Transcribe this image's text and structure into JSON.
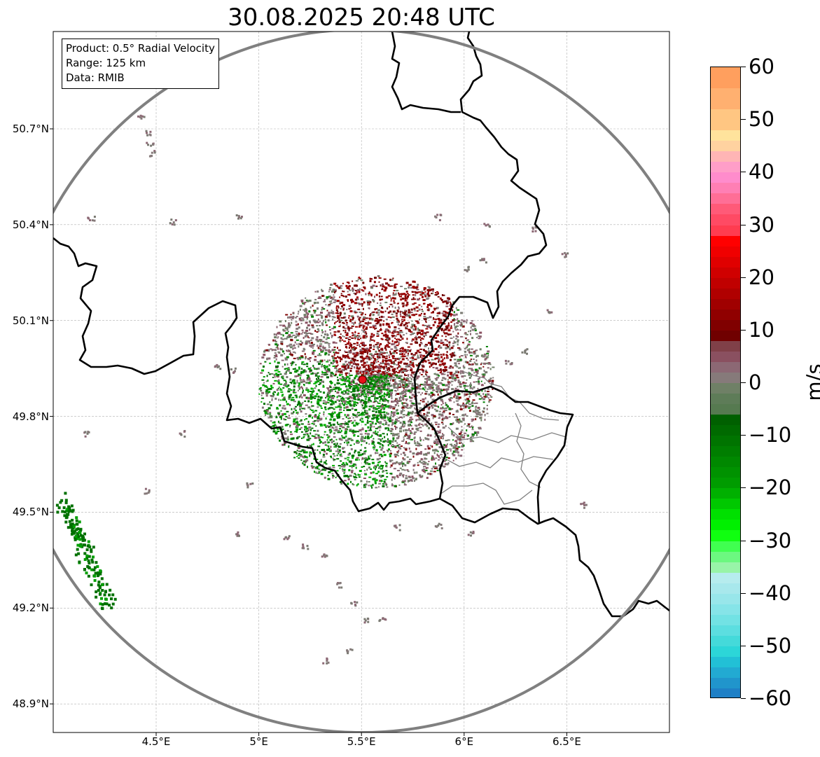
{
  "title": "30.08.2025 20:48 UTC",
  "info": {
    "product": "Product: 0.5° Radial Velocity",
    "range": "Range: 125 km",
    "source": "Data: RMIB"
  },
  "axes": {
    "lat_labels": [
      {
        "value": 50.7,
        "label": "50.7°N"
      },
      {
        "value": 50.4,
        "label": "50.4°N"
      },
      {
        "value": 50.1,
        "label": "50.1°N"
      },
      {
        "value": 49.8,
        "label": "49.8°N"
      },
      {
        "value": 49.5,
        "label": "49.5°N"
      },
      {
        "value": 49.2,
        "label": "49.2°N"
      },
      {
        "value": 48.9,
        "label": "48.9°N"
      }
    ],
    "lon_labels": [
      {
        "value": 4.5,
        "label": "4.5°E"
      },
      {
        "value": 5.0,
        "label": "5°E"
      },
      {
        "value": 5.5,
        "label": "5.5°E"
      },
      {
        "value": 6.0,
        "label": "6°E"
      },
      {
        "value": 6.5,
        "label": "6.5°E"
      }
    ],
    "lon_range": [
      4.0,
      7.0
    ],
    "lat_range": [
      48.8,
      51.0
    ]
  },
  "radar_site": {
    "lon": 5.505,
    "lat": 49.915,
    "color": "#e8101a"
  },
  "colorbar": {
    "unit": "m/s",
    "min": -60,
    "max": 60,
    "ticks": [
      {
        "value": 60,
        "label": "60"
      },
      {
        "value": 50,
        "label": "50"
      },
      {
        "value": 40,
        "label": "40"
      },
      {
        "value": 30,
        "label": "30"
      },
      {
        "value": 20,
        "label": "20"
      },
      {
        "value": 10,
        "label": "10"
      },
      {
        "value": 0,
        "label": "0"
      },
      {
        "value": -10,
        "label": "−10"
      },
      {
        "value": -20,
        "label": "−20"
      },
      {
        "value": -30,
        "label": "−30"
      },
      {
        "value": -40,
        "label": "−40"
      },
      {
        "value": -50,
        "label": "−50"
      },
      {
        "value": -60,
        "label": "−60"
      }
    ],
    "segments": [
      {
        "from": 56,
        "to": 60,
        "color": "#ff9f5e"
      },
      {
        "from": 52,
        "to": 56,
        "color": "#ffb070"
      },
      {
        "from": 48,
        "to": 52,
        "color": "#ffc682"
      },
      {
        "from": 46,
        "to": 48,
        "color": "#ffe39c"
      },
      {
        "from": 44,
        "to": 46,
        "color": "#ffd2a0"
      },
      {
        "from": 42,
        "to": 44,
        "color": "#ffb5b5"
      },
      {
        "from": 40,
        "to": 42,
        "color": "#ff9ec8"
      },
      {
        "from": 38,
        "to": 40,
        "color": "#ff8ccc"
      },
      {
        "from": 36,
        "to": 38,
        "color": "#ff7fb4"
      },
      {
        "from": 34,
        "to": 36,
        "color": "#ff6e96"
      },
      {
        "from": 32,
        "to": 34,
        "color": "#ff5a78"
      },
      {
        "from": 30,
        "to": 32,
        "color": "#ff4a64"
      },
      {
        "from": 28,
        "to": 30,
        "color": "#ff3c50"
      },
      {
        "from": 26,
        "to": 28,
        "color": "#ff0000"
      },
      {
        "from": 24,
        "to": 26,
        "color": "#f00000"
      },
      {
        "from": 22,
        "to": 24,
        "color": "#e00000"
      },
      {
        "from": 20,
        "to": 22,
        "color": "#d00000"
      },
      {
        "from": 18,
        "to": 20,
        "color": "#c00000"
      },
      {
        "from": 16,
        "to": 18,
        "color": "#b00000"
      },
      {
        "from": 14,
        "to": 16,
        "color": "#a00000"
      },
      {
        "from": 12,
        "to": 14,
        "color": "#900000"
      },
      {
        "from": 10,
        "to": 12,
        "color": "#800000"
      },
      {
        "from": 8,
        "to": 10,
        "color": "#700000"
      },
      {
        "from": 6,
        "to": 8,
        "color": "#804048"
      },
      {
        "from": 4,
        "to": 6,
        "color": "#8a5060"
      },
      {
        "from": 2,
        "to": 4,
        "color": "#8c6874"
      },
      {
        "from": 0,
        "to": 2,
        "color": "#867a7a"
      },
      {
        "from": -2,
        "to": 0,
        "color": "#6f8066"
      },
      {
        "from": -4,
        "to": -2,
        "color": "#5e7c58"
      },
      {
        "from": -6,
        "to": -4,
        "color": "#567a50"
      },
      {
        "from": -8,
        "to": -6,
        "color": "#006000"
      },
      {
        "from": -10,
        "to": -8,
        "color": "#006a00"
      },
      {
        "from": -12,
        "to": -10,
        "color": "#007400"
      },
      {
        "from": -14,
        "to": -12,
        "color": "#007e00"
      },
      {
        "from": -16,
        "to": -14,
        "color": "#008800"
      },
      {
        "from": -18,
        "to": -16,
        "color": "#009200"
      },
      {
        "from": -20,
        "to": -18,
        "color": "#009c00"
      },
      {
        "from": -22,
        "to": -20,
        "color": "#00b000"
      },
      {
        "from": -24,
        "to": -22,
        "color": "#00c800"
      },
      {
        "from": -26,
        "to": -24,
        "color": "#00e000"
      },
      {
        "from": -28,
        "to": -26,
        "color": "#00f000"
      },
      {
        "from": -30,
        "to": -28,
        "color": "#10ff10"
      },
      {
        "from": -32,
        "to": -30,
        "color": "#40ff50"
      },
      {
        "from": -34,
        "to": -32,
        "color": "#6cf880"
      },
      {
        "from": -36,
        "to": -34,
        "color": "#98f4a8"
      },
      {
        "from": -38,
        "to": -36,
        "color": "#b6ecee"
      },
      {
        "from": -40,
        "to": -38,
        "color": "#a8e8ec"
      },
      {
        "from": -42,
        "to": -40,
        "color": "#98e6ea"
      },
      {
        "from": -44,
        "to": -42,
        "color": "#86e4e8"
      },
      {
        "from": -46,
        "to": -44,
        "color": "#72e2e4"
      },
      {
        "from": -48,
        "to": -46,
        "color": "#5cdee0"
      },
      {
        "from": -50,
        "to": -48,
        "color": "#44dada"
      },
      {
        "from": -52,
        "to": -50,
        "color": "#2cd6d8"
      },
      {
        "from": -54,
        "to": -52,
        "color": "#22c0d6"
      },
      {
        "from": -56,
        "to": -54,
        "color": "#22aad2"
      },
      {
        "from": -58,
        "to": -56,
        "color": "#2095cc"
      },
      {
        "from": -60,
        "to": -58,
        "color": "#1f80c6"
      }
    ]
  },
  "colors": {
    "outbound": "#8b0000",
    "zero": "#867a7a",
    "inbound": "#008000",
    "border": "#000000",
    "admin": "#808080",
    "range_ring": "#808080",
    "grid": "#b0b0b0"
  }
}
